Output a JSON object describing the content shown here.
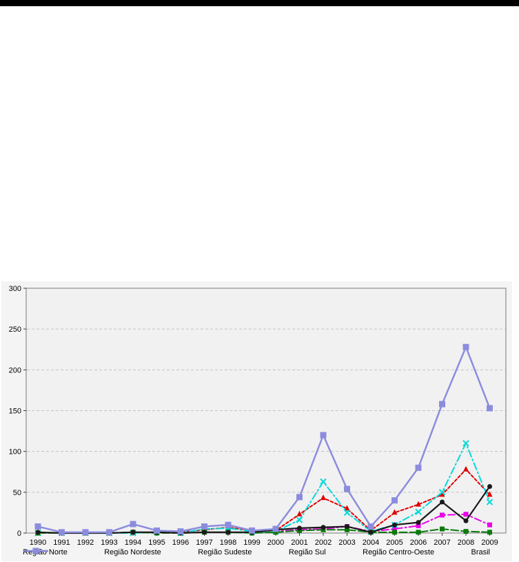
{
  "page": {
    "top_bar_color": "#000000",
    "background_color": "#ffffff"
  },
  "chart_data": {
    "type": "line",
    "title": "",
    "xlabel": "",
    "ylabel": "",
    "x": [
      "1990",
      "1991",
      "1992",
      "1993",
      "1994",
      "1995",
      "1996",
      "1997",
      "1998",
      "1999",
      "2000",
      "2001",
      "2002",
      "2003",
      "2004",
      "2005",
      "2006",
      "2007",
      "2008",
      "2009"
    ],
    "ylim": [
      0,
      300
    ],
    "yticks": [
      0,
      50,
      100,
      150,
      200,
      250,
      300
    ],
    "grid": "horizontal-dashed",
    "legend_position": "bottom",
    "outer_bg": "#F4F4F4",
    "plot_bg": "#F1F1F1",
    "grid_color": "#C2C2C2",
    "frame_color": "#787878",
    "series": [
      {
        "name": "Região Norte",
        "color": "#E800E8",
        "marker": "square",
        "msize": 7,
        "dash": "dashdot",
        "width": 2,
        "values": [
          0,
          0,
          0,
          0,
          1,
          1,
          0,
          1,
          1,
          1,
          2,
          4,
          5,
          8,
          2,
          5,
          9,
          22,
          23,
          10
        ]
      },
      {
        "name": "Região Nordeste",
        "color": "#E00000",
        "marker": "triangle",
        "msize": 8,
        "dash": "dash",
        "width": 2,
        "values": [
          0,
          0,
          0,
          0,
          1,
          1,
          1,
          4,
          7,
          3,
          3,
          23,
          43,
          30,
          3,
          25,
          35,
          47,
          78,
          47
        ]
      },
      {
        "name": "Região Sudeste",
        "color": "#00D9D9",
        "marker": "x",
        "msize": 8,
        "dash": "dashdot",
        "width": 2,
        "values": [
          0,
          0,
          0,
          0,
          0,
          1,
          0,
          5,
          6,
          2,
          2,
          16,
          63,
          25,
          2,
          10,
          26,
          50,
          110,
          38
        ]
      },
      {
        "name": "Região Sul",
        "color": "#0B7A0B",
        "marker": "square",
        "msize": 7,
        "dash": "longdash",
        "width": 2,
        "values": [
          0,
          0,
          0,
          0,
          1,
          0,
          0,
          1,
          1,
          0,
          1,
          3,
          4,
          4,
          1,
          1,
          1,
          5,
          2,
          1
        ]
      },
      {
        "name": "Região Centro-Oeste",
        "color": "#1A1A1A",
        "marker": "circle",
        "msize": 7,
        "dash": "solid",
        "width": 2.2,
        "values": [
          1,
          0,
          0,
          0,
          1,
          1,
          0,
          1,
          1,
          1,
          4,
          6,
          7,
          8,
          1,
          10,
          13,
          38,
          15,
          57
        ]
      },
      {
        "name": "Brasil",
        "color": "#8C8CDE",
        "marker": "square",
        "msize": 9,
        "dash": "solid",
        "width": 2.5,
        "values": [
          8,
          1,
          1,
          1,
          11,
          3,
          2,
          8,
          10,
          3,
          5,
          44,
          120,
          54,
          8,
          40,
          80,
          158,
          228,
          153
        ]
      }
    ]
  }
}
